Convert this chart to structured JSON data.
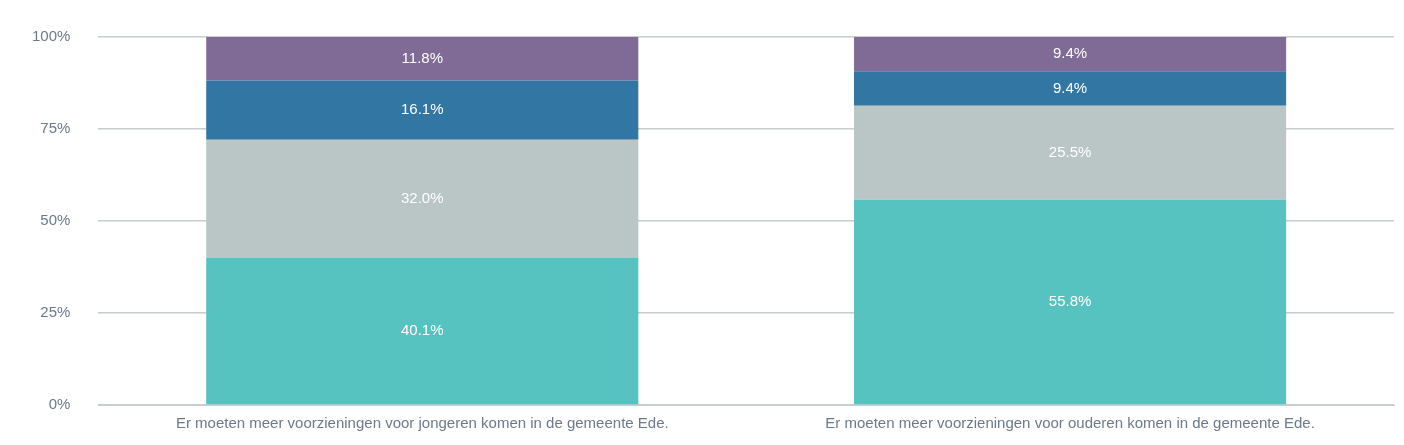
{
  "chart_data": {
    "type": "bar",
    "stacked": true,
    "grid": "y",
    "categories": [
      "Er moeten meer voorzieningen voor jongeren komen in de gemeente Ede.",
      "Er moeten meer voorzieningen voor ouderen komen in de gemeente Ede."
    ],
    "ylim": [
      0,
      100
    ],
    "yticks": [
      {
        "value": 0,
        "label": "0%"
      },
      {
        "value": 25,
        "label": "25%"
      },
      {
        "value": 50,
        "label": "50%"
      },
      {
        "value": 75,
        "label": "75%"
      },
      {
        "value": 100,
        "label": "100%"
      }
    ],
    "series": [
      {
        "color": "#56c3c1",
        "values": [
          40.1,
          55.8
        ],
        "value_labels": [
          "40.1%",
          "55.8%"
        ]
      },
      {
        "color": "#bac5c6",
        "values": [
          32.0,
          25.5
        ],
        "value_labels": [
          "32.0%",
          "25.5%"
        ]
      },
      {
        "color": "#3276a4",
        "values": [
          16.1,
          9.4
        ],
        "value_labels": [
          "16.1%",
          "9.4%"
        ]
      },
      {
        "color": "#7f6b96",
        "values": [
          11.8,
          9.4
        ],
        "value_labels": [
          "11.8%",
          "9.4%"
        ]
      }
    ]
  }
}
